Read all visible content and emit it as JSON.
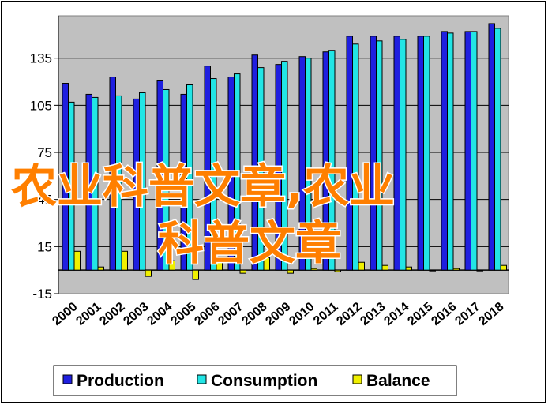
{
  "chart_data": {
    "type": "bar",
    "categories": [
      "2000",
      "2001",
      "2002",
      "2003",
      "2004",
      "2005",
      "2006",
      "2007",
      "2008",
      "2009",
      "2010",
      "2011",
      "2012",
      "2013",
      "2014",
      "2015",
      "2016",
      "2017",
      "2018"
    ],
    "series": [
      {
        "name": "Production",
        "color": "#1f1fe0",
        "values": [
          119,
          112,
          123,
          109,
          121,
          112,
          130,
          123,
          137,
          131,
          136,
          139,
          149,
          149,
          149,
          149,
          152,
          152,
          157
        ]
      },
      {
        "name": "Consumption",
        "color": "#22e5e5",
        "values": [
          107,
          110,
          111,
          113,
          115,
          118,
          122,
          125,
          129,
          133,
          135,
          140,
          144,
          146,
          147,
          149,
          151,
          152,
          154
        ]
      },
      {
        "name": "Balance",
        "color": "#f0f000",
        "values": [
          12,
          2,
          12,
          -4,
          6,
          -6,
          8,
          -2,
          8,
          -2,
          1,
          -1,
          5,
          3,
          2,
          0,
          1,
          0,
          3
        ]
      }
    ],
    "yticks": [
      -15,
      15,
      45,
      75,
      105,
      135
    ],
    "ylim": [
      -15,
      162
    ],
    "grid": true,
    "legend": "bottom",
    "title": "",
    "xlabel": "",
    "ylabel": ""
  },
  "watermark": {
    "line1": "农业科普文章,农业",
    "line2": "科普文章"
  }
}
